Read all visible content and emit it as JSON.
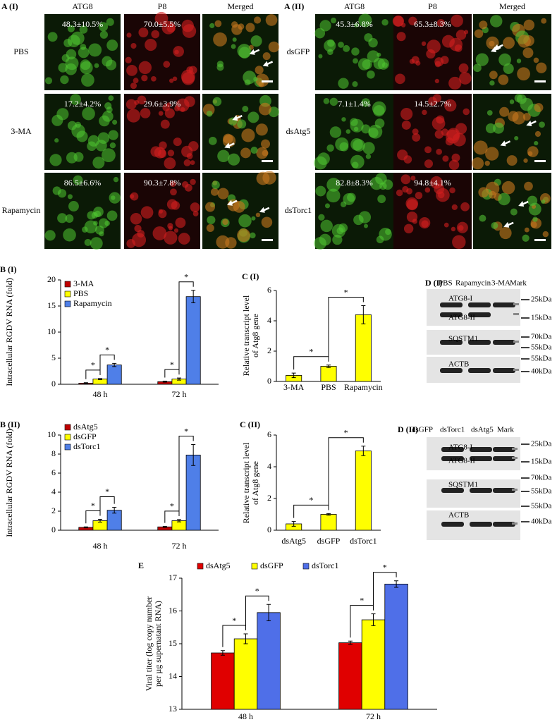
{
  "panel_a": [
    {
      "label": "A (I)",
      "columns": [
        "ATG8",
        "P8",
        "Merged"
      ],
      "rows": [
        {
          "label": "PBS",
          "atg8": "48.3±10.5%",
          "p8": "70.0±5.5%"
        },
        {
          "label": "3-MA",
          "atg8": "17.2±4.2%",
          "p8": "29.6±3.9%"
        },
        {
          "label": "Rapamycin",
          "atg8": "86.5±6.6%",
          "p8": "90.3±7.8%"
        }
      ]
    },
    {
      "label": "A (II)",
      "columns": [
        "ATG8",
        "P8",
        "Merged"
      ],
      "rows": [
        {
          "label": "dsGFP",
          "atg8": "45.3±6.8%",
          "p8": "65.3±8.3%"
        },
        {
          "label": "dsAtg5",
          "atg8": "7.1±1.4%",
          "p8": "14.5±2.7%"
        },
        {
          "label": "dsTorc1",
          "atg8": "82.8±8.3%",
          "p8": "94.8±4.1%"
        }
      ]
    }
  ],
  "blots": [
    {
      "label": "D (I)",
      "lanes": [
        "PBS",
        "Rapamycin",
        "3-MA",
        "Mark"
      ],
      "bands": [
        "ATG8-I",
        "ATG8-II",
        "SQSTM1",
        "ACTB"
      ],
      "markers": [
        "25kDa",
        "15kDa",
        "70kDa",
        "55kDa",
        "55kDa",
        "40kDa"
      ]
    },
    {
      "label": "D (II)",
      "lanes": [
        "dsGFP",
        "dsTorc1",
        "dsAtg5",
        "Mark"
      ],
      "bands": [
        "ATG8-I",
        "ATG8-II",
        "SQSTM1",
        "ACTB"
      ],
      "markers": [
        "25kDa",
        "15kDa",
        "70kDa",
        "55kDa",
        "55kDa",
        "40kDa"
      ]
    }
  ],
  "chart_data": [
    {
      "type": "bar",
      "title": "B (I)",
      "ylabel": "Intracellular RGDV RNA (fold)",
      "categories": [
        "48 h",
        "72 h"
      ],
      "series": [
        {
          "name": "3-MA",
          "color": "#c00000",
          "values": [
            0.2,
            0.5
          ],
          "errors": [
            0.1,
            0.1
          ]
        },
        {
          "name": "PBS",
          "color": "#ffff00",
          "values": [
            1.0,
            1.0
          ],
          "errors": [
            0.1,
            0.2
          ]
        },
        {
          "name": "Rapamycin",
          "color": "#4f7fe8",
          "values": [
            3.7,
            16.8
          ],
          "errors": [
            0.3,
            1.2
          ]
        }
      ],
      "ylim": [
        0,
        20
      ],
      "yticks": [
        0,
        5,
        10,
        15,
        20
      ],
      "significance": [
        "*",
        "*",
        "*",
        "*"
      ]
    },
    {
      "type": "bar",
      "title": "B (II)",
      "ylabel": "Intracellular RGDV RNA (fold)",
      "categories": [
        "48 h",
        "72 h"
      ],
      "series": [
        {
          "name": "dsAtg5",
          "color": "#c00000",
          "values": [
            0.3,
            0.35
          ],
          "errors": [
            0.05,
            0.05
          ]
        },
        {
          "name": "dsGFP",
          "color": "#ffff00",
          "values": [
            1.0,
            1.0
          ],
          "errors": [
            0.15,
            0.12
          ]
        },
        {
          "name": "dsTorc1",
          "color": "#4f7fe8",
          "values": [
            2.1,
            7.9
          ],
          "errors": [
            0.3,
            1.1
          ]
        }
      ],
      "ylim": [
        0,
        10
      ],
      "yticks": [
        0,
        2,
        4,
        6,
        8,
        10
      ],
      "significance": [
        "*",
        "*",
        "*",
        "*"
      ]
    },
    {
      "type": "bar",
      "title": "C (I)",
      "ylabel": [
        "Relative transcript level",
        "of Atg8 gene"
      ],
      "categories": [
        "3-MA",
        "PBS",
        "Rapamycin"
      ],
      "values": [
        0.4,
        1.0,
        4.4
      ],
      "errors": [
        0.15,
        0.08,
        0.6
      ],
      "color": "#ffff00",
      "ylim": [
        0,
        6
      ],
      "yticks": [
        0,
        2,
        4,
        6
      ],
      "significance": [
        "*",
        "*"
      ]
    },
    {
      "type": "bar",
      "title": "C (II)",
      "ylabel": [
        "Relative transcript level",
        "of Atg8 gene"
      ],
      "categories": [
        "dsAtg5",
        "dsGFP",
        "dsTorc1"
      ],
      "values": [
        0.4,
        1.0,
        5.0
      ],
      "errors": [
        0.15,
        0.05,
        0.3
      ],
      "color": "#ffff00",
      "ylim": [
        0,
        6
      ],
      "yticks": [
        0,
        2,
        4,
        6
      ],
      "significance": [
        "*",
        "*"
      ]
    },
    {
      "type": "bar",
      "title": "E",
      "ylabel": [
        "Viral titer (log copy number",
        "per µg  supernatant RNA)"
      ],
      "categories": [
        "48 h",
        "72 h"
      ],
      "series": [
        {
          "name": "dsAtg5",
          "color": "#e00000",
          "values": [
            14.72,
            15.03
          ],
          "errors": [
            0.07,
            0.05
          ]
        },
        {
          "name": "dsGFP",
          "color": "#ffff00",
          "values": [
            15.15,
            15.73
          ],
          "errors": [
            0.15,
            0.18
          ]
        },
        {
          "name": "dsTorc1",
          "color": "#4f6fe8",
          "values": [
            15.95,
            16.82
          ],
          "errors": [
            0.25,
            0.1
          ]
        }
      ],
      "ylim": [
        13,
        17
      ],
      "yticks": [
        13,
        14,
        15,
        16,
        17
      ],
      "significance": [
        "*",
        "*",
        "*",
        "*"
      ]
    }
  ]
}
